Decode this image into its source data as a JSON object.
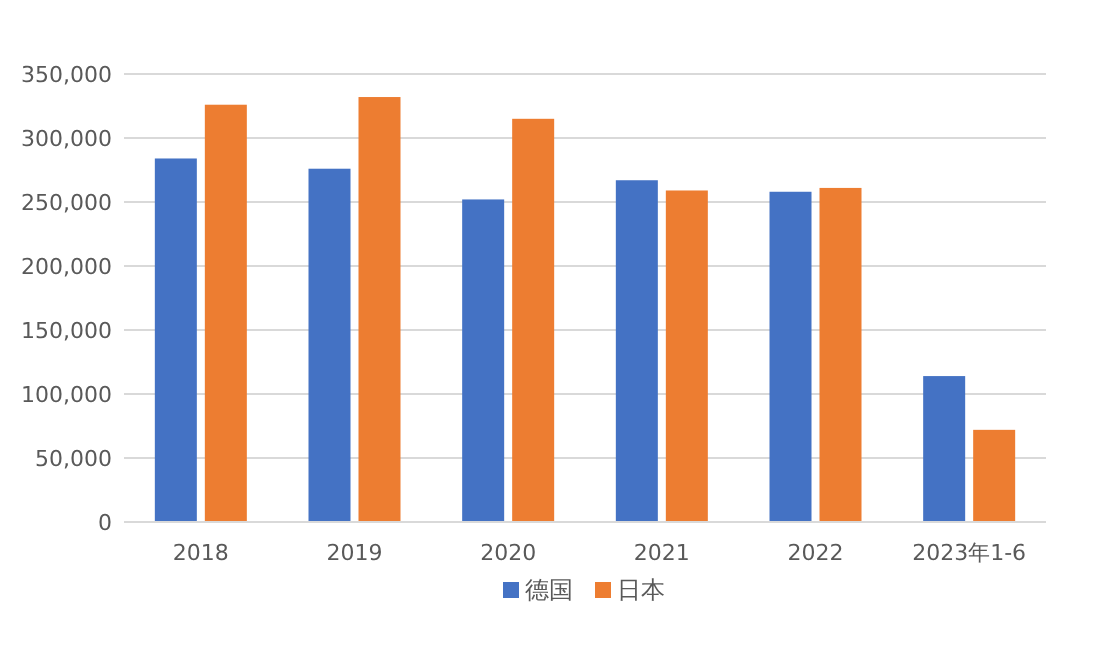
{
  "chart_data": {
    "type": "bar",
    "categories": [
      "2018",
      "2019",
      "2020",
      "2021",
      "2022",
      "2023年1-6"
    ],
    "series": [
      {
        "name": "德国",
        "color": "#4472c4",
        "values": [
          284000,
          276000,
          252000,
          267000,
          258000,
          114000
        ]
      },
      {
        "name": "日本",
        "color": "#ed7d31",
        "values": [
          326000,
          332000,
          315000,
          259000,
          261000,
          72000
        ]
      }
    ],
    "ylim": [
      0,
      350000
    ],
    "yticks": [
      {
        "value": 0,
        "label": "0"
      },
      {
        "value": 50000,
        "label": "50,000"
      },
      {
        "value": 100000,
        "label": "100,000"
      },
      {
        "value": 150000,
        "label": "150,000"
      },
      {
        "value": 200000,
        "label": "200,000"
      },
      {
        "value": 250000,
        "label": "250,000"
      },
      {
        "value": 300000,
        "label": "300,000"
      },
      {
        "value": 350000,
        "label": "350,000"
      }
    ],
    "grid": "y",
    "legend": "bottom"
  }
}
